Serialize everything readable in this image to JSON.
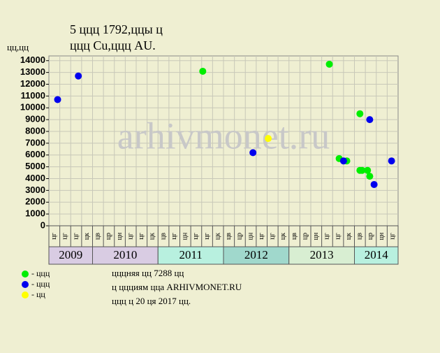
{
  "chart_data": {
    "type": "scatter",
    "title": "5 ццц 1792,ццы ц",
    "subtitle": "ццц Cu,ццц AU.",
    "y_label": "цц,цц",
    "watermark": "arhivmonet.ru",
    "xlim": [
      0,
      32
    ],
    "ylim": [
      0,
      14400
    ],
    "yticks": [
      0,
      1000,
      2000,
      3000,
      4000,
      5000,
      6000,
      7000,
      8000,
      9000,
      10000,
      11000,
      12000,
      13000,
      14000
    ],
    "grid": true,
    "month_labels": [
      "цг",
      "цг",
      "цг",
      "цк",
      "цв",
      "цр",
      "цн",
      "цг",
      "цг",
      "цк",
      "цв",
      "цг",
      "цн",
      "цг",
      "цг",
      "цк",
      "цв",
      "цр",
      "цн",
      "цг",
      "цг",
      "цк",
      "цв",
      "цр",
      "цн",
      "цг",
      "цг",
      "цк",
      "цв",
      "цр",
      "цн",
      "цг"
    ],
    "years": [
      {
        "label": "2009",
        "months": 4,
        "color": "#d9cce3"
      },
      {
        "label": "2010",
        "months": 6,
        "color": "#d9cce3"
      },
      {
        "label": "2011",
        "months": 6,
        "color": "#b8f0df"
      },
      {
        "label": "2012",
        "months": 6,
        "color": "#a0d8cc"
      },
      {
        "label": "2013",
        "months": 6,
        "color": "#d8eed2"
      },
      {
        "label": "2014",
        "months": 4,
        "color": "#b8f0df"
      }
    ],
    "series": [
      {
        "name": "- ццц",
        "color": "#00ee00",
        "x": [
          14.1,
          25.7,
          26.6,
          27.3,
          28.5,
          28.5,
          28.7,
          29.2,
          29.4
        ],
        "values": [
          13100,
          13700,
          5700,
          5500,
          9500,
          4700,
          4700,
          4700,
          4200
        ]
      },
      {
        "name": "- ццц",
        "color": "#0000ee",
        "x": [
          0.8,
          2.7,
          18.7,
          27.0,
          29.4,
          29.8,
          31.4
        ],
        "values": [
          10700,
          12700,
          6200,
          5500,
          9000,
          3500,
          5500
        ]
      },
      {
        "name": "- цц",
        "color": "#ffff00",
        "x": [
          20.1
        ],
        "values": [
          7400
        ]
      }
    ],
    "notes": [
      "цццняя цц 7288 цц",
      "ц ццциям цца ARHIVMONET.RU",
      "ццц ц 20 ця 2017 цц."
    ]
  }
}
